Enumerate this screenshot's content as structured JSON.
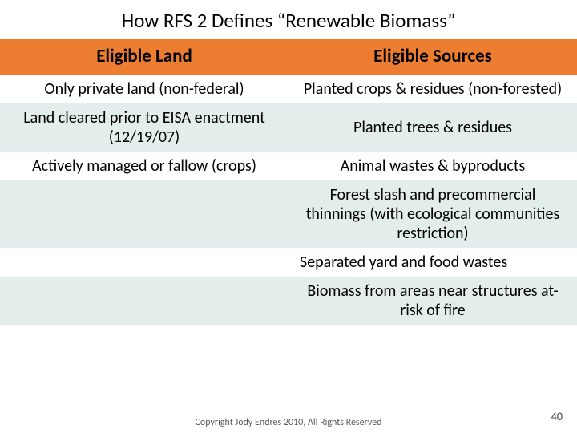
{
  "title": "How RFS 2 Defines “Renewable Biomass”",
  "headers": {
    "left": "Eligible Land",
    "right": "Eligible Sources"
  },
  "rows": [
    {
      "tint": false,
      "left": "Only private land (non-federal)",
      "right": "Planted crops & residues (non-forested)"
    },
    {
      "tint": true,
      "left": "Land cleared prior to EISA enactment (12/19/07)",
      "right": "Planted trees & residues"
    },
    {
      "tint": false,
      "left": "Actively managed or fallow (crops)",
      "right": "Animal wastes & byproducts"
    },
    {
      "tint": true,
      "left": "",
      "right": "Forest slash and precommercial thinnings (with ecological communities restriction)"
    },
    {
      "tint": false,
      "left": "",
      "right": "Separated yard and food wastes"
    },
    {
      "tint": true,
      "left": "",
      "right": "Biomass from areas near structures at-risk of fire"
    }
  ],
  "footer": "Copyright Jody Endres 2010, All Rights Reserved",
  "page_number": "40",
  "colors": {
    "header_bg": "#ed7d31",
    "tint_bg": "#e2edec",
    "white_bg": "#ffffff"
  }
}
